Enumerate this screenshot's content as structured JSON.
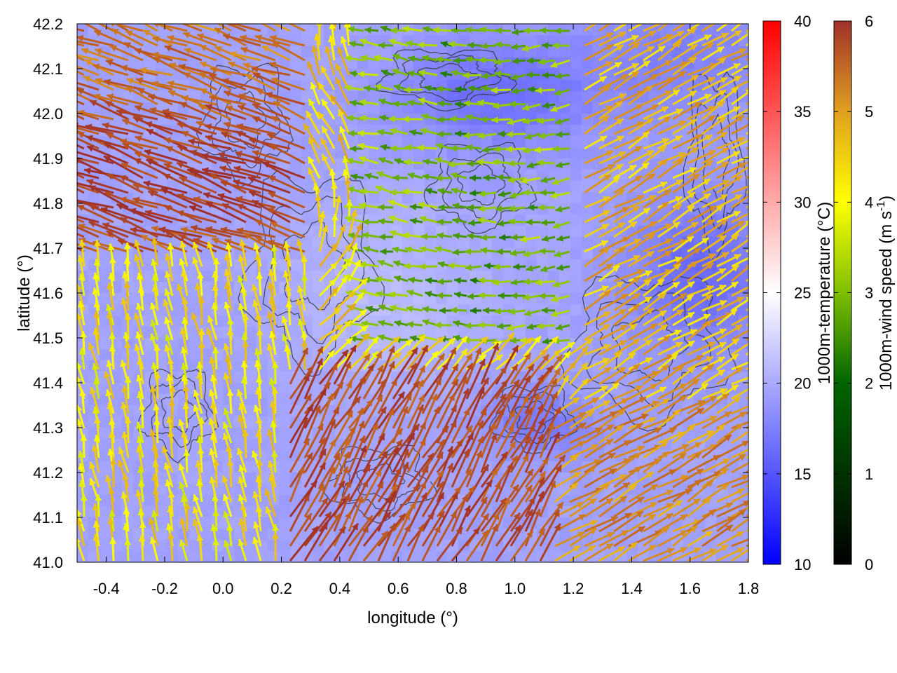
{
  "chart_data": {
    "type": "heatmap",
    "title": "",
    "xlabel": "longitude (°)",
    "ylabel": "latitude (°)",
    "xlim": [
      -0.5,
      1.8
    ],
    "ylim": [
      41.0,
      42.2
    ],
    "x_ticks": [
      "-0.4",
      "-0.2",
      "0.0",
      "0.2",
      "0.4",
      "0.6",
      "0.8",
      "1.0",
      "1.2",
      "1.4",
      "1.6",
      "1.8"
    ],
    "y_ticks": [
      "41.0",
      "41.1",
      "41.2",
      "41.3",
      "41.4",
      "41.5",
      "41.6",
      "41.7",
      "41.8",
      "41.9",
      "42.0",
      "42.1",
      "42.2"
    ],
    "grid": false,
    "field": {
      "name": "1000m-temperature",
      "label": "1000m-temperature (°C)",
      "range": [
        10,
        40
      ],
      "ticks": [
        "10",
        "15",
        "20",
        "25",
        "30",
        "35",
        "40"
      ],
      "colormap": [
        "#0000ff",
        "#ffffff",
        "#ff0000"
      ],
      "typical_range_shown": [
        13,
        22
      ]
    },
    "vectors": {
      "name": "1000m-wind speed",
      "label_main": "1000m-wind speed (m s",
      "label_sup": "-1",
      "label_end": ")",
      "range": [
        0,
        6
      ],
      "ticks": [
        "0",
        "1",
        "2",
        "3",
        "4",
        "5",
        "6"
      ],
      "colormap": [
        "#000000",
        "#006400",
        "#7fbf00",
        "#ffff00",
        "#e0a020",
        "#c06020",
        "#a0302a"
      ]
    },
    "contours": {
      "color": "#333333",
      "description": "terrain elevation contours"
    }
  }
}
